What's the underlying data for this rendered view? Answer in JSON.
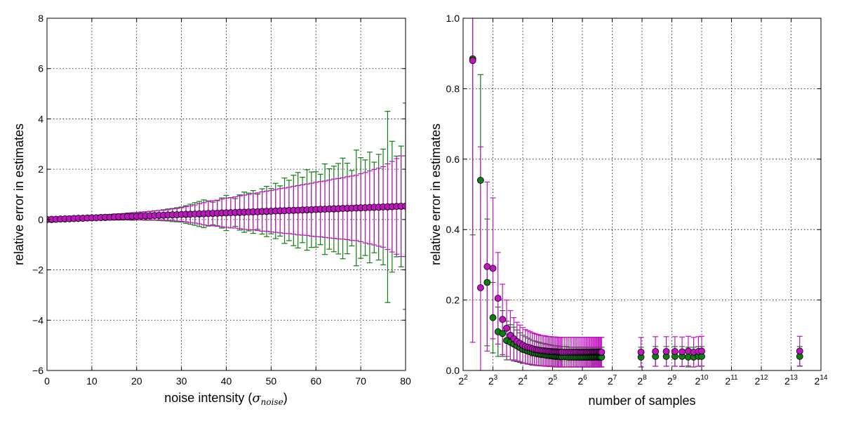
{
  "chart_data": [
    {
      "type": "scatter",
      "title": "",
      "xlabel": "noise intensity (",
      "xlabel_symbol": "σ",
      "xlabel_subscript": "noise",
      "xlabel_close": ")",
      "ylabel": "relative error in estimates",
      "xlim": [
        0,
        80
      ],
      "ylim": [
        -6,
        8
      ],
      "xticks": [
        0,
        10,
        20,
        30,
        40,
        50,
        60,
        70,
        80
      ],
      "xtick_labels": [
        "0",
        "10",
        "20",
        "30",
        "40",
        "50",
        "60",
        "70",
        "80"
      ],
      "yticks": [
        -6,
        -4,
        -2,
        0,
        2,
        4,
        6,
        8
      ],
      "ytick_labels": [
        "−6",
        "−4",
        "−2",
        "0",
        "2",
        "4",
        "6",
        "8"
      ],
      "grid": true,
      "colors": {
        "green": "#0f7d0f",
        "magenta": "#c014c0"
      },
      "series": [
        {
          "color": "green",
          "x": [
            0,
            1,
            2,
            3,
            4,
            5,
            6,
            7,
            8,
            9,
            10,
            11,
            12,
            13,
            14,
            15,
            16,
            17,
            18,
            19,
            20,
            21,
            22,
            23,
            24,
            25,
            26,
            27,
            28,
            29,
            30,
            31,
            32,
            33,
            34,
            35,
            36,
            37,
            38,
            39,
            40,
            41,
            42,
            43,
            44,
            45,
            46,
            47,
            48,
            49,
            50,
            51,
            52,
            53,
            54,
            55,
            56,
            57,
            58,
            59,
            60,
            61,
            62,
            63,
            64,
            65,
            66,
            67,
            68,
            69,
            70,
            71,
            72,
            73,
            74,
            75,
            76,
            77,
            78,
            79,
            80
          ],
          "y": [
            0.0,
            0.0,
            0.01,
            0.02,
            0.02,
            0.03,
            0.04,
            0.04,
            0.05,
            0.06,
            0.06,
            0.07,
            0.08,
            0.08,
            0.09,
            0.1,
            0.1,
            0.11,
            0.12,
            0.12,
            0.13,
            0.14,
            0.14,
            0.15,
            0.16,
            0.16,
            0.17,
            0.18,
            0.18,
            0.19,
            0.2,
            0.2,
            0.21,
            0.22,
            0.22,
            0.23,
            0.24,
            0.24,
            0.25,
            0.26,
            0.26,
            0.27,
            0.28,
            0.28,
            0.29,
            0.3,
            0.3,
            0.31,
            0.32,
            0.32,
            0.33,
            0.34,
            0.34,
            0.35,
            0.36,
            0.36,
            0.37,
            0.38,
            0.38,
            0.39,
            0.4,
            0.4,
            0.41,
            0.42,
            0.42,
            0.43,
            0.44,
            0.44,
            0.45,
            0.46,
            0.46,
            0.47,
            0.48,
            0.48,
            0.49,
            0.5,
            0.5,
            0.51,
            0.52,
            0.52,
            0.53
          ],
          "yerr": [
            0.01,
            0.02,
            0.03,
            0.04,
            0.04,
            0.05,
            0.06,
            0.06,
            0.07,
            0.08,
            0.08,
            0.09,
            0.1,
            0.1,
            0.11,
            0.12,
            0.12,
            0.13,
            0.14,
            0.15,
            0.15,
            0.16,
            0.17,
            0.18,
            0.19,
            0.2,
            0.22,
            0.24,
            0.26,
            0.28,
            0.3,
            0.35,
            0.4,
            0.45,
            0.5,
            0.55,
            0.5,
            0.45,
            0.5,
            0.6,
            0.7,
            0.6,
            0.55,
            0.7,
            0.8,
            0.75,
            0.85,
            0.7,
            0.9,
            1.0,
            0.9,
            1.1,
            1.0,
            1.3,
            1.2,
            1.4,
            1.5,
            1.3,
            1.6,
            1.5,
            1.5,
            1.4,
            1.8,
            1.6,
            1.7,
            1.8,
            2.0,
            1.8,
            1.5,
            2.3,
            2.0,
            1.9,
            2.2,
            1.8,
            2.1,
            2.3,
            3.8,
            2.6,
            2.0,
            2.4,
            4.1
          ]
        },
        {
          "color": "magenta",
          "x": [
            0,
            1,
            2,
            3,
            4,
            5,
            6,
            7,
            8,
            9,
            10,
            11,
            12,
            13,
            14,
            15,
            16,
            17,
            18,
            19,
            20,
            21,
            22,
            23,
            24,
            25,
            26,
            27,
            28,
            29,
            30,
            31,
            32,
            33,
            34,
            35,
            36,
            37,
            38,
            39,
            40,
            41,
            42,
            43,
            44,
            45,
            46,
            47,
            48,
            49,
            50,
            51,
            52,
            53,
            54,
            55,
            56,
            57,
            58,
            59,
            60,
            61,
            62,
            63,
            64,
            65,
            66,
            67,
            68,
            69,
            70,
            71,
            72,
            73,
            74,
            75,
            76,
            77,
            78,
            79,
            80
          ],
          "y": [
            0.0,
            0.01,
            0.01,
            0.02,
            0.03,
            0.03,
            0.04,
            0.05,
            0.05,
            0.06,
            0.07,
            0.07,
            0.08,
            0.09,
            0.09,
            0.1,
            0.11,
            0.11,
            0.12,
            0.13,
            0.13,
            0.14,
            0.15,
            0.15,
            0.16,
            0.17,
            0.17,
            0.18,
            0.19,
            0.19,
            0.2,
            0.21,
            0.21,
            0.22,
            0.23,
            0.23,
            0.24,
            0.25,
            0.25,
            0.26,
            0.27,
            0.27,
            0.28,
            0.29,
            0.29,
            0.3,
            0.31,
            0.31,
            0.32,
            0.33,
            0.33,
            0.34,
            0.35,
            0.35,
            0.36,
            0.37,
            0.37,
            0.38,
            0.39,
            0.39,
            0.4,
            0.41,
            0.41,
            0.42,
            0.43,
            0.43,
            0.44,
            0.45,
            0.45,
            0.46,
            0.47,
            0.47,
            0.48,
            0.49,
            0.49,
            0.5,
            0.51,
            0.51,
            0.52,
            0.53,
            0.53
          ],
          "yerr": [
            0.01,
            0.02,
            0.02,
            0.03,
            0.04,
            0.04,
            0.05,
            0.06,
            0.06,
            0.07,
            0.08,
            0.08,
            0.09,
            0.1,
            0.1,
            0.11,
            0.12,
            0.12,
            0.13,
            0.14,
            0.14,
            0.15,
            0.16,
            0.17,
            0.18,
            0.19,
            0.2,
            0.21,
            0.23,
            0.25,
            0.27,
            0.3,
            0.33,
            0.36,
            0.4,
            0.44,
            0.48,
            0.5,
            0.52,
            0.55,
            0.58,
            0.6,
            0.62,
            0.65,
            0.68,
            0.7,
            0.72,
            0.75,
            0.78,
            0.8,
            0.82,
            0.85,
            0.88,
            0.9,
            0.92,
            0.95,
            0.98,
            1.0,
            1.02,
            1.05,
            1.08,
            1.1,
            1.12,
            1.15,
            1.18,
            1.2,
            1.22,
            1.25,
            1.28,
            1.3,
            1.35,
            1.4,
            1.45,
            1.5,
            1.55,
            1.6,
            1.7,
            1.8,
            1.9,
            2.0,
            2.0
          ]
        }
      ]
    },
    {
      "type": "scatter",
      "title": "",
      "xlabel": "number of samples",
      "ylabel": "relative error in estimates",
      "xscale": "log2",
      "xlim": [
        4,
        16384
      ],
      "ylim": [
        0,
        1.0
      ],
      "xticks": [
        4,
        8,
        16,
        32,
        64,
        128,
        256,
        512,
        1024,
        2048,
        4096,
        8192,
        16384
      ],
      "xtick_base": "2",
      "xtick_exponents": [
        "2",
        "3",
        "4",
        "5",
        "6",
        "7",
        "8",
        "9",
        "10",
        "11",
        "12",
        "13",
        "14"
      ],
      "yticks": [
        0,
        0.2,
        0.4,
        0.6,
        0.8,
        1.0
      ],
      "ytick_labels": [
        "0.0",
        "0.2",
        "0.4",
        "0.6",
        "0.8",
        "1.0"
      ],
      "grid": true,
      "colors": {
        "green": "#0f7d0f",
        "magenta": "#c014c0"
      },
      "series": [
        {
          "color": "green",
          "x": [
            5,
            6,
            7,
            8,
            9,
            10,
            11,
            12,
            13,
            14,
            15,
            16,
            17,
            18,
            19,
            20,
            21,
            22,
            23,
            24,
            25,
            26,
            27,
            28,
            29,
            30,
            31,
            32,
            33,
            34,
            35,
            36,
            37,
            38,
            39,
            40,
            42,
            44,
            46,
            48,
            50,
            52,
            54,
            56,
            58,
            60,
            62,
            64,
            66,
            68,
            70,
            72,
            74,
            76,
            78,
            80,
            82,
            84,
            86,
            88,
            90,
            92,
            94,
            96,
            98,
            100,
            250,
            350,
            450,
            550,
            650,
            750,
            850,
            950,
            1024,
            10000
          ],
          "y": [
            0.885,
            0.54,
            0.25,
            0.15,
            0.11,
            0.105,
            0.085,
            0.08,
            0.075,
            0.07,
            0.065,
            0.06,
            0.058,
            0.055,
            0.053,
            0.05,
            0.05,
            0.048,
            0.047,
            0.046,
            0.045,
            0.045,
            0.044,
            0.043,
            0.043,
            0.042,
            0.042,
            0.041,
            0.041,
            0.04,
            0.04,
            0.04,
            0.04,
            0.039,
            0.039,
            0.039,
            0.039,
            0.039,
            0.038,
            0.038,
            0.038,
            0.038,
            0.038,
            0.038,
            0.038,
            0.038,
            0.038,
            0.038,
            0.038,
            0.038,
            0.038,
            0.038,
            0.038,
            0.038,
            0.038,
            0.038,
            0.038,
            0.038,
            0.038,
            0.038,
            0.038,
            0.038,
            0.038,
            0.038,
            0.038,
            0.038,
            0.038,
            0.04,
            0.04,
            0.04,
            0.04,
            0.038,
            0.038,
            0.04,
            0.04,
            0.04
          ],
          "yerr": [
            0.5,
            0.3,
            0.18,
            0.1,
            0.07,
            0.065,
            0.055,
            0.05,
            0.048,
            0.045,
            0.042,
            0.04,
            0.038,
            0.037,
            0.036,
            0.035,
            0.034,
            0.034,
            0.033,
            0.033,
            0.032,
            0.032,
            0.032,
            0.031,
            0.031,
            0.031,
            0.03,
            0.03,
            0.03,
            0.03,
            0.03,
            0.03,
            0.029,
            0.029,
            0.029,
            0.029,
            0.029,
            0.029,
            0.028,
            0.028,
            0.028,
            0.028,
            0.028,
            0.028,
            0.028,
            0.028,
            0.028,
            0.028,
            0.028,
            0.028,
            0.028,
            0.028,
            0.028,
            0.028,
            0.028,
            0.028,
            0.028,
            0.028,
            0.028,
            0.028,
            0.028,
            0.028,
            0.028,
            0.028,
            0.028,
            0.028,
            0.028,
            0.028,
            0.028,
            0.028,
            0.028,
            0.028,
            0.028,
            0.028,
            0.028,
            0.028
          ]
        },
        {
          "color": "magenta",
          "x": [
            5,
            6,
            7,
            8,
            9,
            10,
            11,
            12,
            13,
            14,
            15,
            16,
            17,
            18,
            19,
            20,
            21,
            22,
            23,
            24,
            25,
            26,
            27,
            28,
            29,
            30,
            31,
            32,
            33,
            34,
            35,
            36,
            37,
            38,
            39,
            40,
            42,
            44,
            46,
            48,
            50,
            52,
            54,
            56,
            58,
            60,
            62,
            64,
            66,
            68,
            70,
            72,
            74,
            76,
            78,
            80,
            82,
            84,
            86,
            88,
            90,
            92,
            94,
            96,
            98,
            100,
            250,
            350,
            450,
            550,
            650,
            750,
            850,
            950,
            1024,
            10000
          ],
          "y": [
            0.88,
            0.235,
            0.295,
            0.29,
            0.205,
            0.145,
            0.12,
            0.1,
            0.09,
            0.082,
            0.077,
            0.072,
            0.068,
            0.066,
            0.064,
            0.062,
            0.06,
            0.059,
            0.058,
            0.057,
            0.056,
            0.056,
            0.055,
            0.055,
            0.054,
            0.054,
            0.054,
            0.053,
            0.053,
            0.053,
            0.053,
            0.052,
            0.052,
            0.052,
            0.052,
            0.052,
            0.052,
            0.052,
            0.052,
            0.052,
            0.052,
            0.052,
            0.052,
            0.052,
            0.052,
            0.052,
            0.052,
            0.052,
            0.052,
            0.052,
            0.052,
            0.052,
            0.052,
            0.052,
            0.052,
            0.052,
            0.052,
            0.052,
            0.052,
            0.052,
            0.052,
            0.052,
            0.052,
            0.052,
            0.052,
            0.052,
            0.052,
            0.054,
            0.054,
            0.054,
            0.053,
            0.055,
            0.052,
            0.054,
            0.055,
            0.055
          ],
          "yerr": [
            0.8,
            0.4,
            0.24,
            0.2,
            0.13,
            0.1,
            0.08,
            0.07,
            0.06,
            0.055,
            0.052,
            0.05,
            0.048,
            0.047,
            0.046,
            0.045,
            0.045,
            0.044,
            0.044,
            0.043,
            0.043,
            0.043,
            0.043,
            0.042,
            0.042,
            0.042,
            0.042,
            0.042,
            0.042,
            0.042,
            0.042,
            0.042,
            0.042,
            0.042,
            0.042,
            0.042,
            0.042,
            0.042,
            0.042,
            0.042,
            0.042,
            0.042,
            0.042,
            0.042,
            0.042,
            0.042,
            0.042,
            0.042,
            0.042,
            0.042,
            0.042,
            0.042,
            0.042,
            0.042,
            0.042,
            0.042,
            0.042,
            0.042,
            0.042,
            0.042,
            0.042,
            0.042,
            0.042,
            0.042,
            0.042,
            0.042,
            0.042,
            0.042,
            0.042,
            0.042,
            0.042,
            0.042,
            0.042,
            0.042,
            0.042,
            0.042
          ]
        }
      ]
    }
  ]
}
